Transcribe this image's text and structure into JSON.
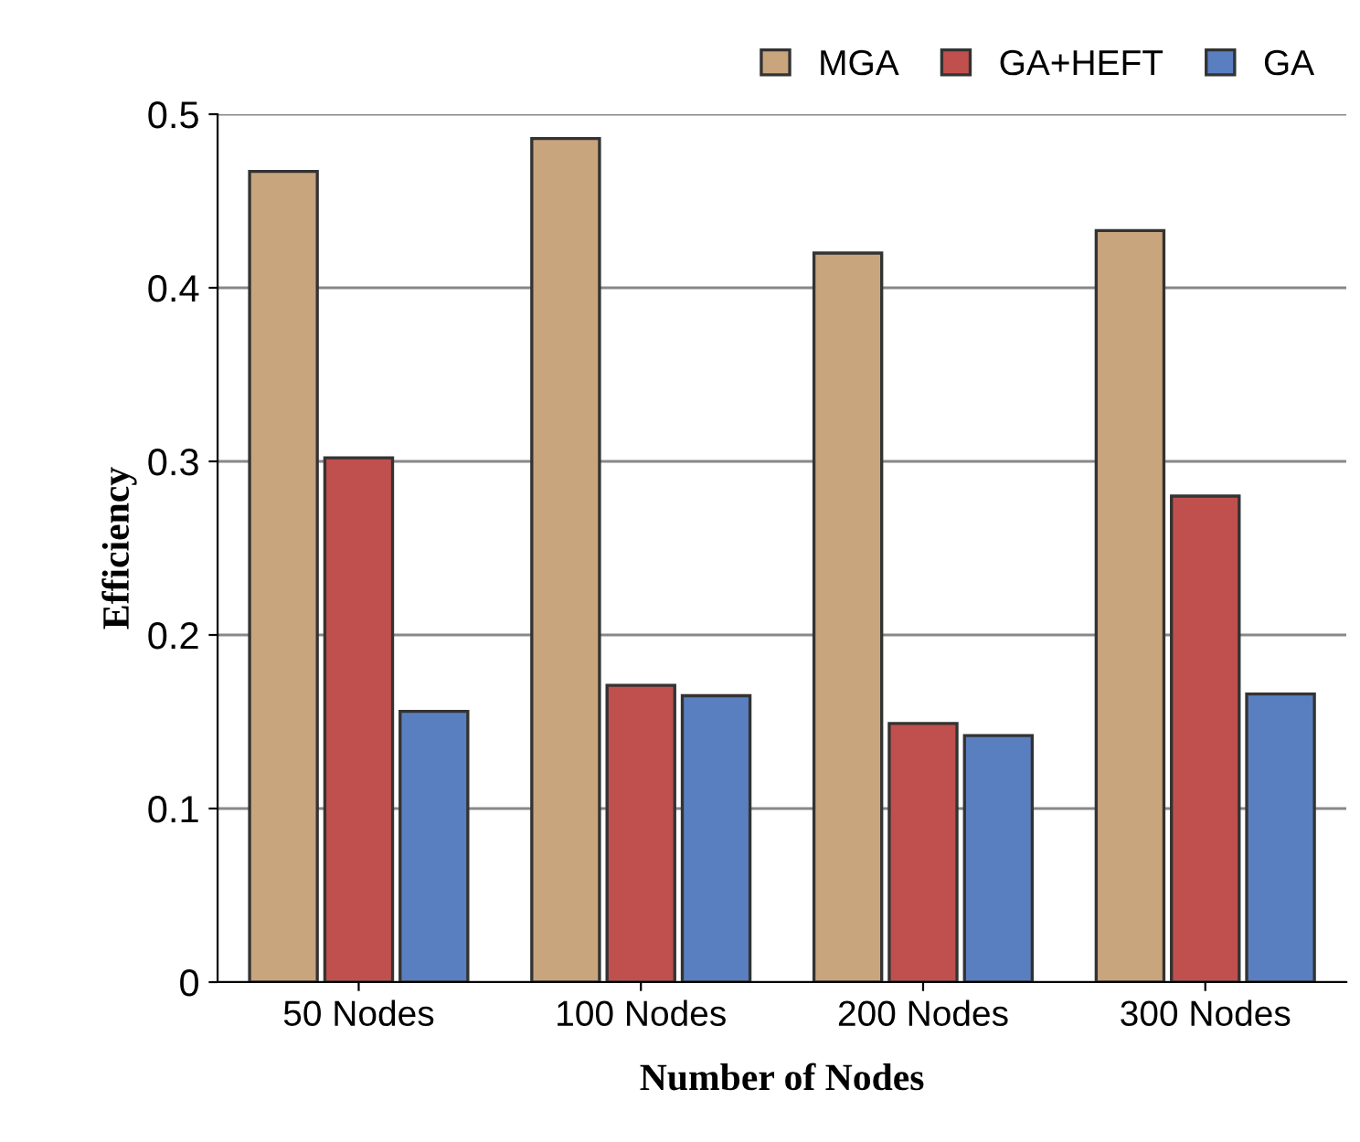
{
  "chart_data": {
    "type": "bar",
    "xlabel": "Number of Nodes",
    "ylabel": "Efficiency",
    "categories": [
      "50 Nodes",
      "100 Nodes",
      "200 Nodes",
      "300 Nodes"
    ],
    "series": [
      {
        "name": "MGA",
        "color": "#c9a57e",
        "values": [
          0.467,
          0.486,
          0.42,
          0.433
        ]
      },
      {
        "name": "GA+HEFT",
        "color": "#c0504d",
        "values": [
          0.302,
          0.171,
          0.149,
          0.28
        ]
      },
      {
        "name": "GA",
        "color": "#5a7fc0",
        "values": [
          0.156,
          0.165,
          0.142,
          0.166
        ]
      }
    ],
    "ylim": [
      0,
      0.5
    ],
    "yticks": [
      0,
      0.1,
      0.2,
      0.3,
      0.4,
      0.5
    ],
    "grid": "y",
    "legend": "top right"
  }
}
